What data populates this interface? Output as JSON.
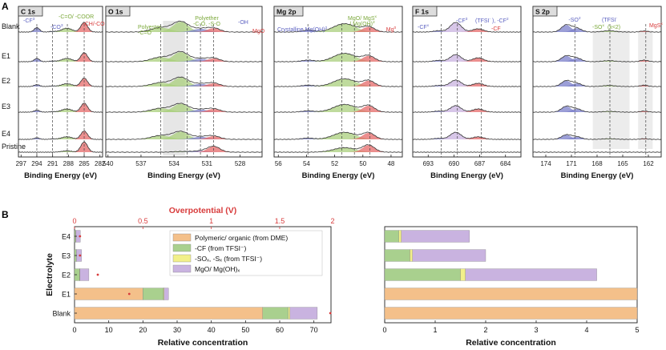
{
  "panel_a": {
    "label": "A",
    "row_labels": [
      "Blank",
      "E1",
      "E2",
      "E3",
      "E4",
      "Pristine"
    ],
    "xlabel": "Binding Energy (eV)",
    "colors": {
      "blue": "#7b7fc9",
      "green": "#a9cf7c",
      "red": "#e66a6a",
      "purple": "#c9b3e0",
      "orange": "#f4c08a",
      "grey": "#c8c8c8"
    },
    "subplots": [
      {
        "title": "C 1s",
        "ticks": [
          "297",
          "294",
          "291",
          "288",
          "285",
          "282"
        ],
        "tick_values": [
          297,
          294,
          291,
          288,
          285,
          282
        ],
        "xrange": [
          297.5,
          281.5
        ],
        "annotations": [
          {
            "text": "-CF",
            "sup": "3",
            "value": 294,
            "color": "#5a5fc0"
          },
          {
            "text": "-CO",
            "sup": "3",
            "value": 291,
            "color": "#5a5fc0"
          },
          {
            "text": "-C=O/ -COOR",
            "sup": "",
            "value": 288.2,
            "color": "#7ba83a"
          },
          {
            "text": "-CH/-CO",
            "sup": "",
            "value": 285,
            "color": "#d83b3b"
          }
        ],
        "peaks": [
          {
            "center": 294,
            "width": 0.7,
            "color": "blue",
            "amp": [
              0.35,
              0.25,
              0.15,
              0.15,
              0.12,
              0.0
            ]
          },
          {
            "center": 291,
            "width": 0.8,
            "color": "blue",
            "amp": [
              0.05,
              0.05,
              0.04,
              0.03,
              0.03,
              0.0
            ]
          },
          {
            "center": 288.3,
            "width": 1.4,
            "color": "green",
            "amp": [
              0.3,
              0.25,
              0.22,
              0.25,
              0.2,
              0.1
            ]
          },
          {
            "center": 285,
            "width": 0.9,
            "color": "red",
            "amp": [
              0.75,
              0.7,
              0.65,
              0.7,
              0.65,
              0.8
            ]
          }
        ]
      },
      {
        "title": "O 1s",
        "ticks": [
          "540",
          "537",
          "534",
          "531",
          "528"
        ],
        "tick_values": [
          540,
          537,
          534,
          531,
          528
        ],
        "xrange": [
          540.2,
          526
        ],
        "annotations": [
          {
            "text": "Polyether",
            "sup": "",
            "value": 532.8,
            "color": "#7ba83a"
          },
          {
            "text": "-C-O, -S-O",
            "sup": "",
            "value": 532.8,
            "color": "#7ba83a"
          },
          {
            "text": "Polyester",
            "sup": "",
            "value": 535.2,
            "color": "#7ba83a"
          },
          {
            "text": "-C=O",
            "sup": "",
            "value": 535.2,
            "color": "#7ba83a"
          },
          {
            "text": "-OH",
            "sup": "",
            "value": 531.6,
            "color": "#5a5fc0"
          },
          {
            "text": "MgO",
            "sup": "",
            "value": 530.4,
            "color": "#d83b3b"
          }
        ],
        "peaks": [
          {
            "center": 535.2,
            "width": 1.2,
            "color": "green",
            "amp": [
              0.35,
              0.35,
              0.3,
              0.3,
              0.3,
              0.0
            ]
          },
          {
            "center": 533.4,
            "width": 1.0,
            "color": "green",
            "amp": [
              0.8,
              0.75,
              0.7,
              0.65,
              0.6,
              0.05
            ]
          },
          {
            "center": 531.6,
            "width": 1.0,
            "color": "blue",
            "amp": [
              0.25,
              0.22,
              0.2,
              0.2,
              0.2,
              0.1
            ]
          },
          {
            "center": 530.4,
            "width": 0.8,
            "color": "red",
            "amp": [
              0.3,
              0.25,
              0.25,
              0.25,
              0.25,
              0.45
            ]
          }
        ]
      },
      {
        "title": "Mg 2p",
        "ticks": [
          "56",
          "54",
          "52",
          "50",
          "48"
        ],
        "tick_values": [
          56,
          54,
          52,
          50,
          48
        ],
        "xrange": [
          56.3,
          47.2
        ],
        "annotations": [
          {
            "text": "Crystalline Mg(OH)",
            "sup": "2",
            "value": 53.9,
            "color": "#5a5fc0"
          },
          {
            "text": "MgO/ MgS",
            "sup": "x",
            "value": 51.5,
            "color": "#7ba83a"
          },
          {
            "text": "/ Mg(OH)",
            "sup": "2",
            "value": 50.6,
            "color": "#7ba83a"
          },
          {
            "text": "Mg",
            "sup": "0",
            "value": 49.5,
            "color": "#d83b3b"
          }
        ],
        "peaks": [
          {
            "center": 53.9,
            "width": 0.6,
            "color": "blue",
            "amp": [
              0.15,
              0.12,
              0.1,
              0.1,
              0.1,
              0.0
            ]
          },
          {
            "center": 51.3,
            "width": 1.1,
            "color": "green",
            "amp": [
              0.65,
              0.65,
              0.6,
              0.6,
              0.55,
              0.35
            ]
          },
          {
            "center": 49.6,
            "width": 0.6,
            "color": "red",
            "amp": [
              0.4,
              0.45,
              0.45,
              0.5,
              0.5,
              0.55
            ]
          }
        ]
      },
      {
        "title": "F 1s",
        "ticks": [
          "693",
          "690",
          "687",
          "684"
        ],
        "tick_values": [
          693,
          690,
          687,
          684
        ],
        "xrange": [
          694.8,
          682.2
        ],
        "annotations": [
          {
            "text": "-CF",
            "sup": "x",
            "value": 691.5,
            "color": "#5a5fc0"
          },
          {
            "text": "-CF",
            "sup": "3",
            "value": 689.6,
            "color": "#5a5fc0"
          },
          {
            "text": "(TFSI",
            "sup": "-",
            "value": 689.6,
            "color": "#5a5fc0"
          },
          {
            "text": "), -CF",
            "sup": "2",
            "value": 689.6,
            "color": "#5a5fc0"
          },
          {
            "text": "-CF",
            "sup": "",
            "value": 686.8,
            "color": "#d83b3b"
          }
        ],
        "peaks": [
          {
            "center": 691.8,
            "width": 0.8,
            "color": "blue",
            "amp": [
              0.1,
              0.1,
              0.08,
              0.08,
              0.08,
              0.0
            ]
          },
          {
            "center": 689.8,
            "width": 0.9,
            "color": "purple",
            "amp": [
              0.75,
              0.55,
              0.5,
              0.5,
              0.55,
              0.0
            ]
          },
          {
            "center": 687.2,
            "width": 0.9,
            "color": "red",
            "amp": [
              0.25,
              0.3,
              0.25,
              0.25,
              0.2,
              0.0
            ]
          }
        ]
      },
      {
        "title": "S 2p",
        "ticks": [
          "174",
          "171",
          "168",
          "165",
          "162"
        ],
        "tick_values": [
          174,
          171,
          168,
          165,
          162
        ],
        "xrange": [
          175.5,
          160.5
        ],
        "annotations": [
          {
            "text": "-SO",
            "sup": "2",
            "value": 170.6,
            "color": "#5a5fc0"
          },
          {
            "text": "(TFSI",
            "sup": "-",
            "value": 170.6,
            "color": "#5a5fc0"
          },
          {
            "text": "-SO",
            "sup": "x",
            "value": 166.5,
            "color": "#7ba83a"
          },
          {
            "text": "(x<2)",
            "sup": "",
            "value": 166.5,
            "color": "#7ba83a"
          },
          {
            "text": "MgS",
            "sup": "x",
            "value": 162.3,
            "color": "#d83b3b"
          }
        ],
        "peaks": [
          {
            "center": 171.6,
            "width": 0.8,
            "color": "blue",
            "amp": [
              0.55,
              0.45,
              0.45,
              0.45,
              0.35,
              0.0
            ]
          },
          {
            "center": 170.4,
            "width": 0.8,
            "color": "blue",
            "amp": [
              0.3,
              0.28,
              0.25,
              0.25,
              0.2,
              0.0
            ]
          },
          {
            "center": 166.6,
            "width": 1.0,
            "color": "green",
            "amp": [
              0.1,
              0.08,
              0.08,
              0.06,
              0.05,
              0.0
            ]
          },
          {
            "center": 162.5,
            "width": 0.6,
            "color": "red",
            "amp": [
              0.08,
              0.12,
              0.1,
              0.08,
              0.05,
              0.0
            ]
          }
        ]
      }
    ]
  },
  "chart_data": [
    {
      "type": "bar",
      "orientation": "horizontal",
      "panel": "B (left)",
      "label": "B",
      "categories": [
        "E4",
        "E3",
        "E2",
        "E1",
        "Blank"
      ],
      "ylabel": "Electrolyte",
      "xlabel": "Relative concentration",
      "xlim": [
        0,
        75
      ],
      "xticks": [
        "0",
        "10",
        "20",
        "30",
        "40",
        "50",
        "60",
        "70"
      ],
      "xtick_values": [
        0,
        10,
        20,
        30,
        40,
        50,
        60,
        70
      ],
      "stacked": true,
      "series": [
        {
          "name": "Polymeric/ organic (from DME)",
          "color": "#f4c08a",
          "values": [
            0.0,
            0.0,
            0.0,
            20.0,
            55.0
          ]
        },
        {
          "name": "-CF (from TFSI⁻)",
          "color": "#a9d08e",
          "values": [
            0.3,
            0.5,
            1.5,
            6.0,
            7.5
          ]
        },
        {
          "name": "-SOₓ, -Sₓ (from TFSI⁻)",
          "color": "#f2f08a",
          "values": [
            0.1,
            0.05,
            0.1,
            0.2,
            0.5
          ]
        },
        {
          "name": "MgO/ Mg(OH)ₓ",
          "color": "#c9b3e0",
          "values": [
            1.3,
            1.5,
            2.6,
            1.3,
            8.0
          ]
        }
      ],
      "secondary_axis": {
        "label": "Overpotential (V)",
        "color": "#d83b3b",
        "xlim": [
          0,
          1.875
        ],
        "xticks": [
          "0",
          "0.5",
          "1",
          "1.5"
        ],
        "xtick_values": [
          0,
          0.5,
          1,
          1.5
        ],
        "extra_ticks_unlabeled": [
          1.875
        ],
        "values": [
          0.04,
          0.04,
          0.17,
          0.4,
          1.87
        ]
      },
      "overpotential_tick_label_right": "2"
    },
    {
      "type": "bar",
      "orientation": "horizontal",
      "panel": "B (right)",
      "categories": [
        "E4",
        "E3",
        "E2",
        "E1",
        "Blank"
      ],
      "xlabel": "Relative concentration",
      "xlim": [
        0,
        5
      ],
      "xticks": [
        "0",
        "1",
        "2",
        "3",
        "4",
        "5"
      ],
      "xtick_values": [
        0,
        1,
        2,
        3,
        4,
        5
      ],
      "stacked": true,
      "series": [
        {
          "name": "Polymeric/ organic (from DME)",
          "color": "#f4c08a",
          "values": [
            0.0,
            0.0,
            0.0,
            5.0,
            5.0
          ]
        },
        {
          "name": "-CF (from TFSI⁻)",
          "color": "#a9d08e",
          "values": [
            0.28,
            0.5,
            1.5,
            0.0,
            0.0
          ]
        },
        {
          "name": "-SOₓ, -Sₓ (from TFSI⁻)",
          "color": "#f2f08a",
          "values": [
            0.05,
            0.05,
            0.1,
            0.0,
            0.0
          ]
        },
        {
          "name": "MgO/ Mg(OH)ₓ",
          "color": "#c9b3e0",
          "values": [
            1.35,
            1.45,
            2.6,
            0.0,
            0.0
          ]
        }
      ]
    }
  ],
  "legend": {
    "items": [
      {
        "label": "Polymeric/ organic (from DME)",
        "color": "#f4c08a"
      },
      {
        "label": "-CF (from TFSI⁻)",
        "color": "#a9d08e"
      },
      {
        "label": "-SOₓ, -Sₓ (from TFSI⁻)",
        "color": "#f2f08a"
      },
      {
        "label": "MgO/ Mg(OH)ₓ",
        "color": "#c9b3e0"
      }
    ]
  }
}
